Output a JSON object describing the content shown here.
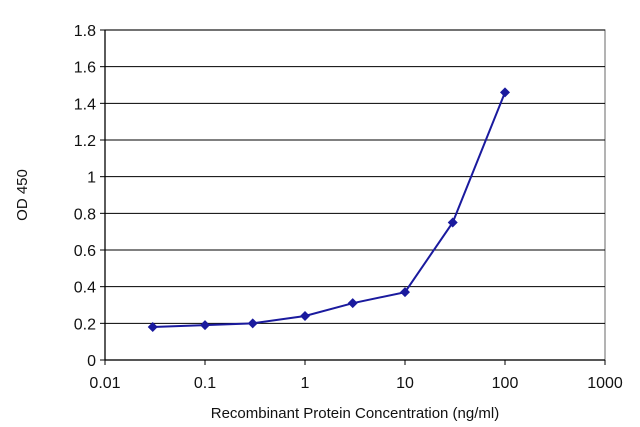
{
  "chart_data": {
    "type": "line",
    "title": "",
    "xlabel": "Recombinant Protein Concentration (ng/ml)",
    "ylabel": "OD 450",
    "x_scale": "log",
    "xlim": [
      0.01,
      1000
    ],
    "ylim": [
      0,
      1.8
    ],
    "x_ticks": [
      "0.01",
      "0.1",
      "1",
      "10",
      "100",
      "1000"
    ],
    "y_ticks": [
      "0",
      "0.2",
      "0.4",
      "0.6",
      "0.8",
      "1",
      "1.2",
      "1.4",
      "1.6",
      "1.8"
    ],
    "grid": "horizontal",
    "legend": "none",
    "series": [
      {
        "color": "#1a1a9e",
        "marker": "diamond",
        "x": [
          0.03,
          0.1,
          0.3,
          1,
          3,
          10,
          30,
          100
        ],
        "y": [
          0.18,
          0.19,
          0.2,
          0.24,
          0.31,
          0.37,
          0.75,
          1.46
        ]
      }
    ]
  }
}
